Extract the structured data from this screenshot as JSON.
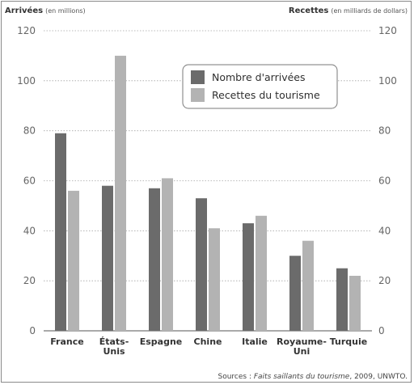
{
  "chart_data": {
    "type": "bar",
    "categories": [
      [
        "France"
      ],
      [
        "États-",
        "Unis"
      ],
      [
        "Espagne"
      ],
      [
        "Chine"
      ],
      [
        "Italie"
      ],
      [
        "Royaume-",
        "Uni"
      ],
      [
        "Turquie"
      ]
    ],
    "series": [
      {
        "name": "Nombre d'arrivées",
        "axis": "left",
        "color": "#6b6b6b",
        "values": [
          79,
          58,
          57,
          53,
          43,
          30,
          25
        ]
      },
      {
        "name": "Recettes du tourisme",
        "axis": "right",
        "color": "#b3b3b3",
        "values": [
          56,
          110,
          61,
          41,
          46,
          36,
          22
        ]
      }
    ],
    "ylabel_left": {
      "main": "Arrivées",
      "unit": "(en millions)"
    },
    "ylabel_right": {
      "main": "Recettes",
      "unit": "(en milliards de dollars)"
    },
    "ylim": [
      0,
      120
    ],
    "yticks": [
      "0",
      "20",
      "40",
      "60",
      "80",
      "100",
      "120"
    ],
    "grid": "horizontal dotted",
    "legend_position": "top-right"
  },
  "source": {
    "prefix": "Sources : ",
    "title": "Faits saillants du tourisme",
    "suffix": ", 2009, UNWTO."
  }
}
